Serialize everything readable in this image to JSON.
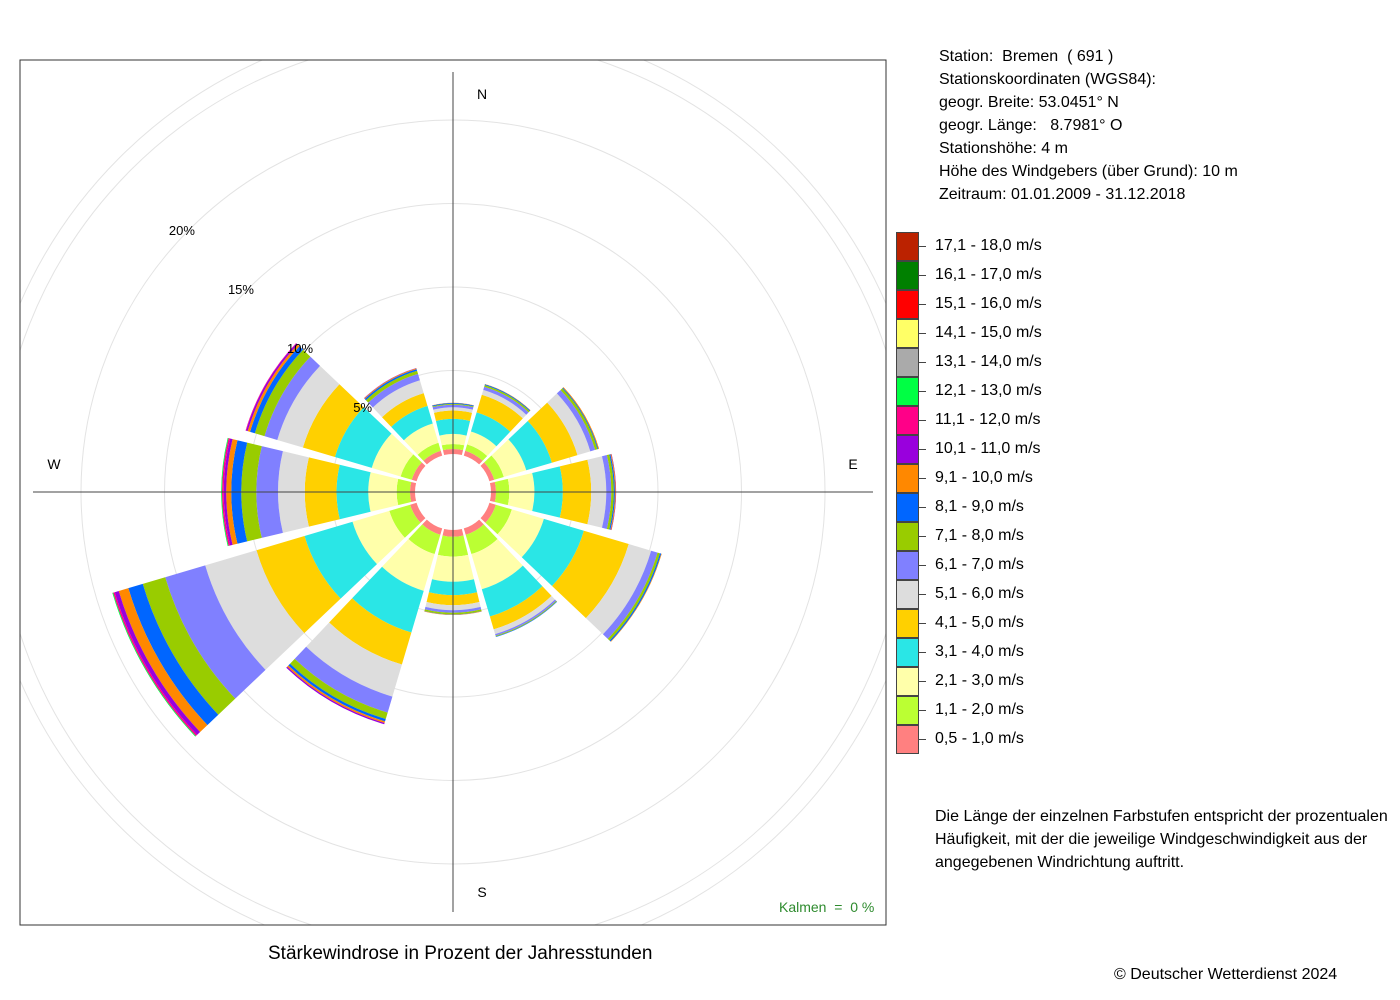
{
  "station": {
    "name_line": "Station:  Bremen  ( 691 )",
    "coords_heading": "Stationskoordinaten (WGS84):",
    "latitude_line": "geogr. Breite: 53.0451° N",
    "longitude_line": "geogr. Länge:   8.7981° O",
    "elevation_line": "Stationshöhe: 4 m",
    "anemometer_line": "Höhe des Windgebers (über Grund): 10 m",
    "period_line": "Zeitraum: 01.01.2009 - 31.12.2018"
  },
  "note": {
    "line1": "Die Länge der einzelnen Farbstufen entspricht der prozentualen",
    "line2": "Häufigkeit, mit der die jeweilige Windgeschwindigkeit aus der",
    "line3": "angegebenen Windrichtung auftritt."
  },
  "footer": {
    "title": "Stärkewindrose in Prozent der Jahresstunden",
    "copyright": "© Deutscher Wetterdienst  2024"
  },
  "calm_label": "Kalmen  =  0 %",
  "chart_data": {
    "type": "wind-rose",
    "title": "Stärkewindrose in Prozent der Jahresstunden",
    "directions_deg": [
      0,
      30,
      60,
      90,
      120,
      150,
      180,
      210,
      240,
      270,
      300,
      330
    ],
    "compass_labels": [
      "N",
      "E",
      "S",
      "W"
    ],
    "radial_axis": {
      "unit": "%",
      "ticks": [
        5,
        10,
        15,
        20
      ],
      "tick_labels": [
        "5%",
        "10%",
        "15%",
        "20%"
      ],
      "max": 26
    },
    "speed_classes": [
      {
        "label": "0,5 - 1,0 m/s",
        "color": "#FF8080"
      },
      {
        "label": "1,1 - 2,0 m/s",
        "color": "#BBFF33"
      },
      {
        "label": "2,1 - 3,0 m/s",
        "color": "#FFFFAA"
      },
      {
        "label": "3,1 - 4,0 m/s",
        "color": "#2AE6E6"
      },
      {
        "label": "4,1 - 5,0 m/s",
        "color": "#FFD000"
      },
      {
        "label": "5,1 - 6,0 m/s",
        "color": "#DDDDDD"
      },
      {
        "label": "6,1 - 7,0 m/s",
        "color": "#8080FF"
      },
      {
        "label": "7,1 - 8,0 m/s",
        "color": "#99CC00"
      },
      {
        "label": "8,1 - 9,0 m/s",
        "color": "#0066FF"
      },
      {
        "label": "9,1 - 10,0 m/s",
        "color": "#FF8800"
      },
      {
        "label": "10,1 - 11,0 m/s",
        "color": "#9900DD"
      },
      {
        "label": "11,1 - 12,0 m/s",
        "color": "#FF0088"
      },
      {
        "label": "12,1 - 13,0 m/s",
        "color": "#00FF44"
      },
      {
        "label": "13,1 - 14,0 m/s",
        "color": "#AAAAAA"
      },
      {
        "label": "14,1 - 15,0 m/s",
        "color": "#FFFF66"
      },
      {
        "label": "15,1 - 16,0 m/s",
        "color": "#FF0000"
      },
      {
        "label": "16,1 - 17,0 m/s",
        "color": "#008000"
      },
      {
        "label": "17,1 - 18,0 m/s",
        "color": "#BB2200"
      }
    ],
    "sector_frequencies_pct": [
      [
        0.3,
        0.3,
        0.6,
        0.9,
        0.5,
        0.2,
        0.15,
        0.05,
        0.05,
        0.02,
        0,
        0,
        0,
        0,
        0,
        0,
        0,
        0
      ],
      [
        0.3,
        0.4,
        0.8,
        1.2,
        1.1,
        0.3,
        0.2,
        0.1,
        0.05,
        0.02,
        0,
        0,
        0,
        0,
        0,
        0,
        0,
        0
      ],
      [
        0.3,
        0.6,
        1.4,
        1.6,
        1.6,
        0.8,
        0.3,
        0.15,
        0.05,
        0.05,
        0,
        0,
        0,
        0,
        0,
        0,
        0,
        0
      ],
      [
        0.3,
        0.8,
        1.5,
        1.7,
        1.7,
        0.9,
        0.3,
        0.15,
        0.07,
        0.05,
        0.02,
        0,
        0,
        0,
        0,
        0,
        0,
        0
      ],
      [
        0.4,
        1.0,
        2.0,
        2.5,
        2.8,
        1.4,
        0.4,
        0.15,
        0.08,
        0.03,
        0,
        0,
        0,
        0,
        0,
        0,
        0,
        0
      ],
      [
        0.4,
        1.2,
        2.2,
        1.7,
        0.8,
        0.3,
        0.1,
        0.05,
        0.03,
        0,
        0,
        0,
        0,
        0,
        0,
        0,
        0,
        0
      ],
      [
        0.4,
        1.2,
        1.5,
        0.8,
        0.6,
        0.3,
        0.15,
        0.1,
        0.02,
        0.02,
        0,
        0,
        0,
        0,
        0,
        0,
        0,
        0
      ],
      [
        0.4,
        1.2,
        2.3,
        2.6,
        2.0,
        2.0,
        1.0,
        0.4,
        0.15,
        0.1,
        0.08,
        0,
        0,
        0,
        0,
        0,
        0,
        0
      ],
      [
        0.4,
        1.3,
        2.3,
        3.0,
        3.0,
        3.2,
        2.5,
        1.4,
        0.9,
        0.6,
        0.25,
        0.1,
        0.05,
        0,
        0,
        0,
        0,
        0
      ],
      [
        0.3,
        0.8,
        1.7,
        1.9,
        1.9,
        1.6,
        1.3,
        0.9,
        0.6,
        0.3,
        0.15,
        0.1,
        0.05,
        0,
        0,
        0,
        0,
        0
      ],
      [
        0.3,
        0.7,
        1.8,
        2.3,
        2.0,
        1.6,
        0.8,
        0.6,
        0.3,
        0.15,
        0.1,
        0.03,
        0,
        0,
        0,
        0,
        0,
        0
      ],
      [
        0.3,
        0.5,
        1.2,
        1.1,
        0.8,
        0.8,
        0.4,
        0.2,
        0.1,
        0.05,
        0.02,
        0,
        0,
        0,
        0,
        0,
        0,
        0
      ]
    ],
    "calm_pct": 0,
    "grid": true,
    "legend_position": "right"
  }
}
